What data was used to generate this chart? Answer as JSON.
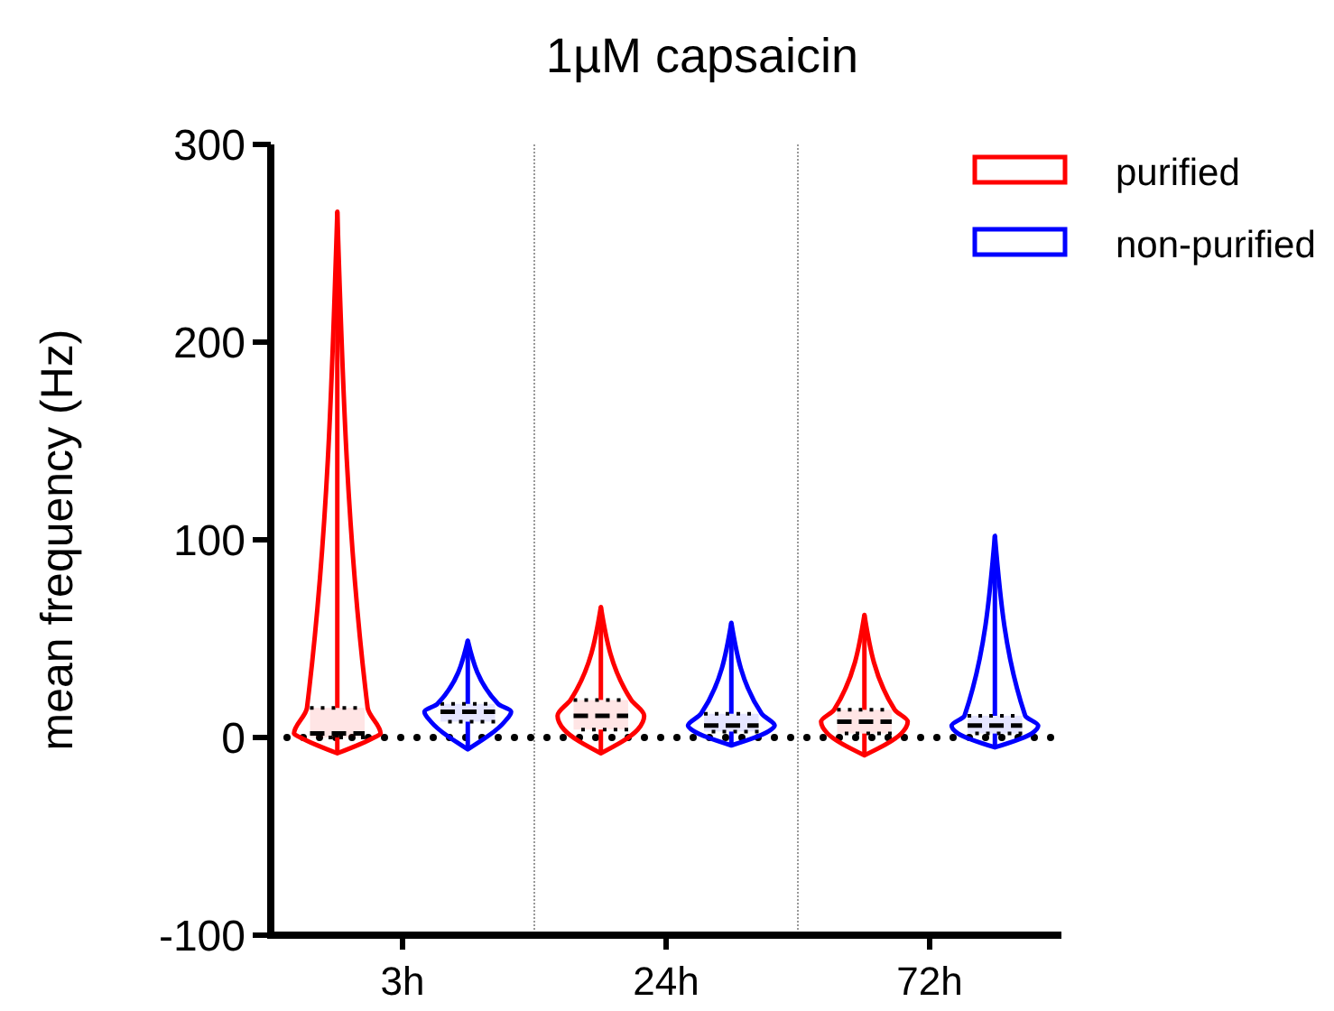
{
  "chart_data": {
    "type": "box",
    "title": "1µM capsaicin",
    "ylabel": "mean frequency (Hz)",
    "categories": [
      "3h",
      "24h",
      "72h"
    ],
    "series": [
      {
        "name": "purified",
        "color": "#ff0000",
        "boxes": [
          {
            "low": -8,
            "q1": 0,
            "median": 2,
            "q3": 15,
            "high": 266
          },
          {
            "low": -8,
            "q1": 4,
            "median": 11,
            "q3": 19,
            "high": 66
          },
          {
            "low": -9,
            "q1": 2,
            "median": 8,
            "q3": 14,
            "high": 62
          }
        ]
      },
      {
        "name": "non-purified",
        "color": "#0000ff",
        "boxes": [
          {
            "low": -6,
            "q1": 8,
            "median": 13,
            "q3": 17,
            "high": 49
          },
          {
            "low": -4,
            "q1": 3,
            "median": 6,
            "q3": 12,
            "high": 58
          },
          {
            "low": -5,
            "q1": 2,
            "median": 6,
            "q3": 11,
            "high": 102
          }
        ]
      }
    ],
    "ylim": [
      -100,
      300
    ],
    "yticks": [
      -100,
      0,
      100,
      200,
      300
    ],
    "ref_lines": [
      {
        "axis": "y",
        "value": 0,
        "line_style": "dotted",
        "color": "#000000"
      }
    ],
    "legend": "top right"
  }
}
